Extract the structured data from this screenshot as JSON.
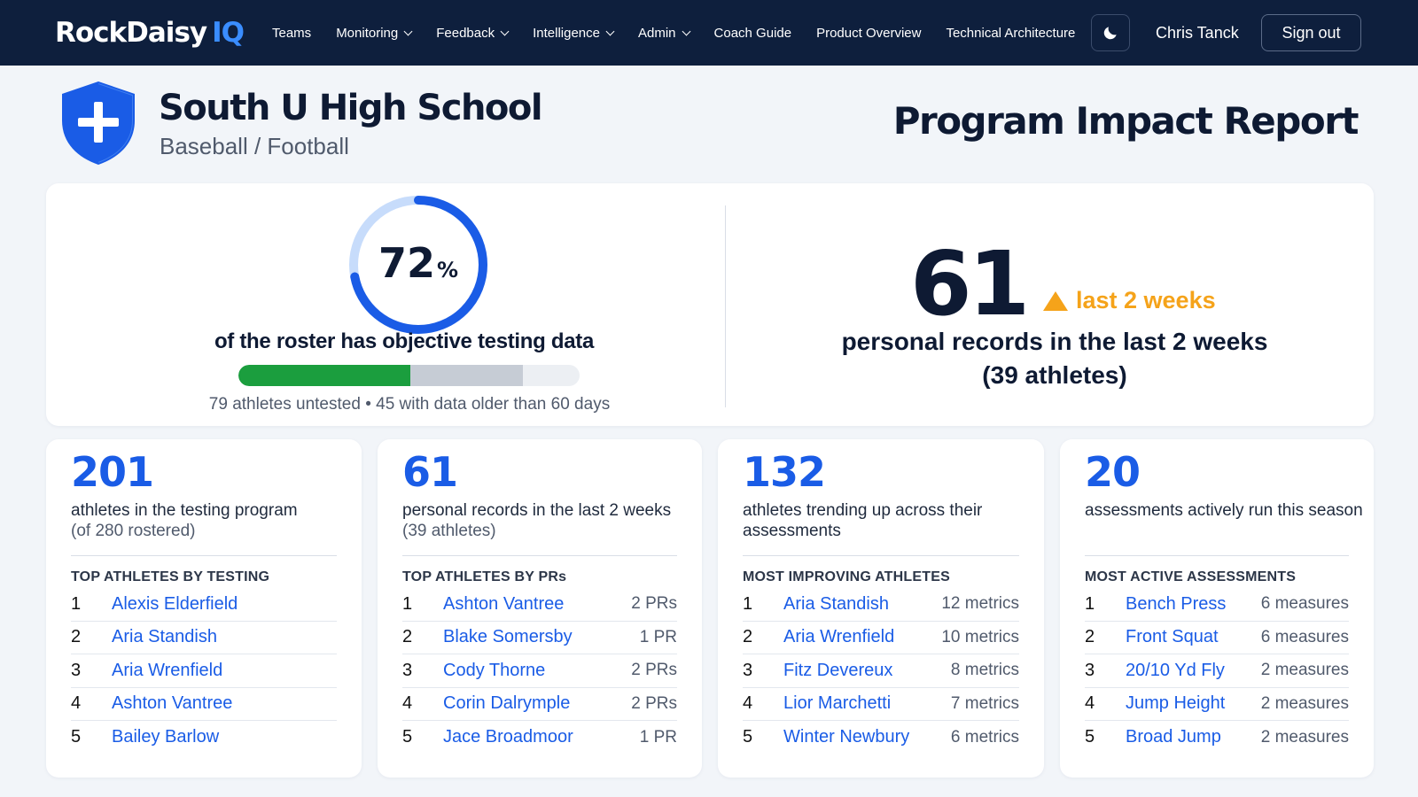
{
  "nav": {
    "logo_main": "RockDaisy",
    "logo_accent": "IQ",
    "links": [
      {
        "label": "Teams",
        "dropdown": false
      },
      {
        "label": "Monitoring",
        "dropdown": true
      },
      {
        "label": "Feedback",
        "dropdown": true
      },
      {
        "label": "Intelligence",
        "dropdown": true
      },
      {
        "label": "Admin",
        "dropdown": true
      },
      {
        "label": "Coach Guide",
        "dropdown": false
      },
      {
        "label": "Product Overview",
        "dropdown": false
      },
      {
        "label": "Technical Architecture",
        "dropdown": false
      }
    ],
    "theme_icon": "moon-icon",
    "user_name": "Chris Tanck",
    "signout_label": "Sign out"
  },
  "header": {
    "school_name": "South U High School",
    "sports": "Baseball / Football",
    "report_title": "Program Impact Report"
  },
  "hero": {
    "coverage_percent": 72,
    "coverage_value": "72",
    "coverage_suffix": "%",
    "coverage_text": "of the roster has objective testing data",
    "progress": {
      "tested_current_fraction": 0.505,
      "tested_stale_fraction": 0.33
    },
    "untested_text": "79 athletes untested • 45 with data older than 60 days",
    "pr_count": "61",
    "pr_trend": "last 2 weeks",
    "pr_text": "personal records in the last 2 weeks",
    "pr_athletes": "(39 athletes)"
  },
  "colors": {
    "nav_bg": "#0e1f3d",
    "accent_blue": "#1a5ce6",
    "progress_green": "#1b9e3e",
    "trend_orange": "#f5a31a",
    "donut_light": "#c7dcfb"
  },
  "cards": [
    {
      "number": "201",
      "desc": "athletes in the testing program",
      "sub": "(of 280 rostered)",
      "heading": "TOP ATHLETES BY TESTING",
      "rows": [
        {
          "rank": "1",
          "name": "Alexis Elderfield",
          "value": ""
        },
        {
          "rank": "2",
          "name": "Aria Standish",
          "value": ""
        },
        {
          "rank": "3",
          "name": "Aria Wrenfield",
          "value": ""
        },
        {
          "rank": "4",
          "name": "Ashton Vantree",
          "value": ""
        },
        {
          "rank": "5",
          "name": "Bailey Barlow",
          "value": ""
        }
      ]
    },
    {
      "number": "61",
      "desc": "personal records in the last 2 weeks",
      "sub": "(39 athletes)",
      "heading": "TOP ATHLETES BY PRs",
      "rows": [
        {
          "rank": "1",
          "name": "Ashton Vantree",
          "value": "2 PRs"
        },
        {
          "rank": "2",
          "name": "Blake Somersby",
          "value": "1 PR"
        },
        {
          "rank": "3",
          "name": "Cody Thorne",
          "value": "2 PRs"
        },
        {
          "rank": "4",
          "name": "Corin Dalrymple",
          "value": "2 PRs"
        },
        {
          "rank": "5",
          "name": "Jace Broadmoor",
          "value": "1 PR"
        }
      ]
    },
    {
      "number": "132",
      "desc": "athletes trending up across their",
      "sub": "assessments",
      "heading": "MOST IMPROVING ATHLETES",
      "rows": [
        {
          "rank": "1",
          "name": "Aria Standish",
          "value": "12 metrics"
        },
        {
          "rank": "2",
          "name": "Aria Wrenfield",
          "value": "10 metrics"
        },
        {
          "rank": "3",
          "name": "Fitz Devereux",
          "value": "8 metrics"
        },
        {
          "rank": "4",
          "name": "Lior Marchetti",
          "value": "7 metrics"
        },
        {
          "rank": "5",
          "name": "Winter Newbury",
          "value": "6 metrics"
        }
      ]
    },
    {
      "number": "20",
      "desc": "assessments actively run this season",
      "sub": "",
      "heading": "MOST ACTIVE ASSESSMENTS",
      "rows": [
        {
          "rank": "1",
          "name": "Bench Press",
          "value": "6 measures"
        },
        {
          "rank": "2",
          "name": "Front Squat",
          "value": "6 measures"
        },
        {
          "rank": "3",
          "name": "20/10 Yd Fly",
          "value": "2 measures"
        },
        {
          "rank": "4",
          "name": "Jump Height",
          "value": "2 measures"
        },
        {
          "rank": "5",
          "name": "Broad Jump",
          "value": "2 measures"
        }
      ]
    }
  ]
}
